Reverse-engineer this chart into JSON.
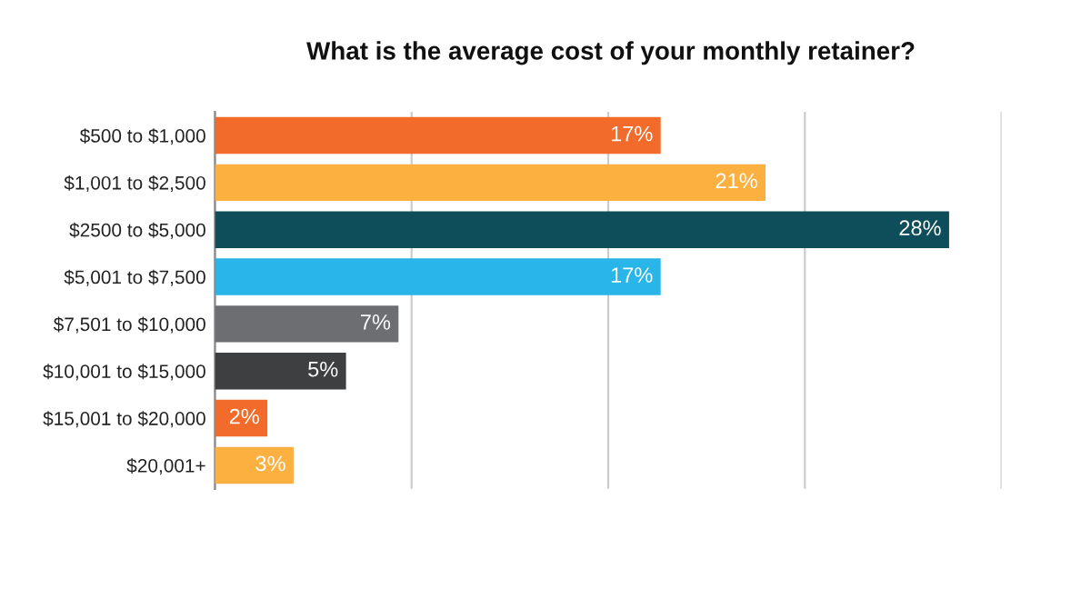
{
  "chart_data": {
    "type": "bar",
    "orientation": "horizontal",
    "title": "What is the average cost of your monthly retainer?",
    "categories": [
      "$500 to $1,000",
      "$1,001 to $2,500",
      "$2500 to $5,000",
      "$5,001 to $7,500",
      "$7,501 to $10,000",
      "$10,001 to $15,000",
      "$15,001 to $20,000",
      "$20,001+"
    ],
    "values": [
      17,
      21,
      28,
      17,
      7,
      5,
      2,
      3
    ],
    "value_labels": [
      "17%",
      "21%",
      "28%",
      "17%",
      "7%",
      "5%",
      "2%",
      "3%"
    ],
    "colors": [
      "#f26b2a",
      "#fbb040",
      "#0e4d5a",
      "#29b5e8",
      "#6d6e71",
      "#3d3f41",
      "#f26b2a",
      "#fbb040"
    ],
    "xlim": [
      0,
      30
    ],
    "xticks": [
      {
        "value": 0,
        "label": null
      },
      {
        "value": 7.5,
        "label": null
      },
      {
        "value": 15,
        "label": null
      },
      {
        "value": 22.5,
        "label": null
      },
      {
        "value": 30,
        "label": null
      }
    ],
    "tick_labels": "y",
    "grid": "x",
    "legend": false
  }
}
